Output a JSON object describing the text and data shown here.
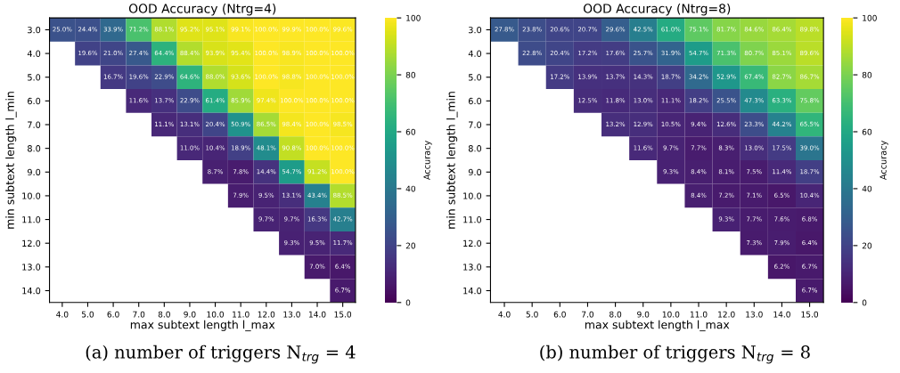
{
  "chart_data": [
    {
      "type": "heatmap",
      "title": "OOD Accuracy (Ntrg=4)",
      "xlabel": "max subtext length l_max",
      "ylabel": "min subtext length l_min",
      "clabel": "Accuracy",
      "clim": [
        0,
        100
      ],
      "cticks": [
        0,
        20,
        40,
        60,
        80,
        100
      ],
      "categories": [
        "4.0",
        "5.0",
        "6.0",
        "7.0",
        "8.0",
        "9.0",
        "10.0",
        "11.0",
        "12.0",
        "13.0",
        "14.0",
        "15.0"
      ],
      "y_categories": [
        "3.0",
        "4.0",
        "5.0",
        "6.0",
        "7.0",
        "8.0",
        "9.0",
        "10.0",
        "11.0",
        "12.0",
        "13.0",
        "14.0"
      ],
      "cells": [
        [
          25.0,
          24.4,
          33.9,
          71.2,
          88.1,
          95.2,
          95.1,
          99.1,
          100.0,
          99.9,
          100.0,
          99.6
        ],
        [
          null,
          19.6,
          21.0,
          27.4,
          64.4,
          88.4,
          93.9,
          95.4,
          100.0,
          98.9,
          100.0,
          100.0
        ],
        [
          null,
          null,
          16.7,
          19.6,
          22.9,
          64.6,
          88.0,
          93.6,
          100.0,
          98.8,
          100.0,
          100.0
        ],
        [
          null,
          null,
          null,
          11.6,
          13.7,
          22.9,
          61.4,
          85.9,
          97.4,
          100.0,
          100.0,
          100.0
        ],
        [
          null,
          null,
          null,
          null,
          11.1,
          13.1,
          20.4,
          50.9,
          86.5,
          98.4,
          100.0,
          98.5
        ],
        [
          null,
          null,
          null,
          null,
          null,
          11.0,
          10.4,
          18.9,
          48.1,
          90.8,
          100.0,
          100.0
        ],
        [
          null,
          null,
          null,
          null,
          null,
          null,
          8.7,
          7.8,
          14.4,
          54.7,
          91.2,
          100.0
        ],
        [
          null,
          null,
          null,
          null,
          null,
          null,
          null,
          7.9,
          9.5,
          13.1,
          43.4,
          88.5
        ],
        [
          null,
          null,
          null,
          null,
          null,
          null,
          null,
          null,
          9.7,
          9.7,
          16.3,
          42.7
        ],
        [
          null,
          null,
          null,
          null,
          null,
          null,
          null,
          null,
          null,
          9.3,
          9.5,
          11.7
        ],
        [
          null,
          null,
          null,
          null,
          null,
          null,
          null,
          null,
          null,
          null,
          7.0,
          6.4
        ],
        [
          null,
          null,
          null,
          null,
          null,
          null,
          null,
          null,
          null,
          null,
          null,
          6.7
        ]
      ],
      "cell_labels": [
        [
          "25.0%",
          "24.4%",
          "33.9%",
          "71.2%",
          "88.1%",
          "95.2%",
          "95.1%",
          "99.1%",
          "100.0%",
          "99.9%",
          "100.0%",
          "99.6%"
        ],
        [
          null,
          "19.6%",
          "21.0%",
          "27.4%",
          "64.4%",
          "88.4%",
          "93.9%",
          "95.4%",
          "100.0%",
          "98.9%",
          "100.0%",
          "100.0%"
        ],
        [
          null,
          null,
          "16.7%",
          "19.6%",
          "22.9%",
          "64.6%",
          "88.0%",
          "93.6%",
          "100.0%",
          "98.8%",
          "100.0%",
          "100.0%"
        ],
        [
          null,
          null,
          null,
          "11.6%",
          "13.7%",
          "22.9%",
          "61.4%",
          "85.9%",
          "97.4%",
          "100.0%",
          "100.0%",
          "100.0%"
        ],
        [
          null,
          null,
          null,
          null,
          "11.1%",
          "13.1%",
          "20.4%",
          "50.9%",
          "86.5%",
          "98.4%",
          "100.0%",
          "98.5%"
        ],
        [
          null,
          null,
          null,
          null,
          null,
          "11.0%",
          "10.4%",
          "18.9%",
          "48.1%",
          "90.8%",
          "100.0%",
          "100.0%"
        ],
        [
          null,
          null,
          null,
          null,
          null,
          null,
          "8.7%",
          "7.8%",
          "14.4%",
          "54.7%",
          "91.2%",
          "100.0%"
        ],
        [
          null,
          null,
          null,
          null,
          null,
          null,
          null,
          "7.9%",
          "9.5%",
          "13.1%",
          "43.4%",
          "88.5%"
        ],
        [
          null,
          null,
          null,
          null,
          null,
          null,
          null,
          null,
          "9.7%",
          "9.7%",
          "16.3%",
          "42.7%"
        ],
        [
          null,
          null,
          null,
          null,
          null,
          null,
          null,
          null,
          null,
          "9.3%",
          "9.5%",
          "11.7%"
        ],
        [
          null,
          null,
          null,
          null,
          null,
          null,
          null,
          null,
          null,
          null,
          "7.0%",
          "6.4%"
        ],
        [
          null,
          null,
          null,
          null,
          null,
          null,
          null,
          null,
          null,
          null,
          null,
          "6.7%"
        ]
      ],
      "annotations": [
        "(a) number of triggers N$_{trg}$ = 4"
      ]
    },
    {
      "type": "heatmap",
      "title": "OOD Accuracy (Ntrg=8)",
      "xlabel": "max subtext length l_max",
      "ylabel": "min subtext length l_min",
      "clabel": "Accuracy",
      "clim": [
        0,
        100
      ],
      "cticks": [
        0,
        20,
        40,
        60,
        80,
        100
      ],
      "categories": [
        "4.0",
        "5.0",
        "6.0",
        "7.0",
        "8.0",
        "9.0",
        "10.0",
        "11.0",
        "12.0",
        "13.0",
        "14.0",
        "15.0"
      ],
      "y_categories": [
        "3.0",
        "4.0",
        "5.0",
        "6.0",
        "7.0",
        "8.0",
        "9.0",
        "10.0",
        "11.0",
        "12.0",
        "13.0",
        "14.0"
      ],
      "cells": [
        [
          27.8,
          23.8,
          20.6,
          20.7,
          29.6,
          42.5,
          61.0,
          75.1,
          81.7,
          84.6,
          86.4,
          89.8
        ],
        [
          null,
          22.8,
          20.4,
          17.2,
          17.6,
          25.7,
          31.9,
          54.7,
          71.3,
          80.7,
          85.1,
          89.6
        ],
        [
          null,
          null,
          17.2,
          13.9,
          13.7,
          14.3,
          18.7,
          34.2,
          52.9,
          67.4,
          82.7,
          86.7
        ],
        [
          null,
          null,
          null,
          12.5,
          11.8,
          13.0,
          11.1,
          18.2,
          25.5,
          47.3,
          63.3,
          75.8
        ],
        [
          null,
          null,
          null,
          null,
          13.2,
          12.9,
          10.5,
          9.4,
          12.6,
          23.3,
          44.2,
          65.5
        ],
        [
          null,
          null,
          null,
          null,
          null,
          11.6,
          9.7,
          7.7,
          8.3,
          13.0,
          17.5,
          39.0
        ],
        [
          null,
          null,
          null,
          null,
          null,
          null,
          9.3,
          8.4,
          8.1,
          7.5,
          11.4,
          18.7
        ],
        [
          null,
          null,
          null,
          null,
          null,
          null,
          null,
          8.4,
          7.2,
          7.1,
          6.5,
          10.4
        ],
        [
          null,
          null,
          null,
          null,
          null,
          null,
          null,
          null,
          9.3,
          7.7,
          7.6,
          6.8
        ],
        [
          null,
          null,
          null,
          null,
          null,
          null,
          null,
          null,
          null,
          7.3,
          7.9,
          6.4
        ],
        [
          null,
          null,
          null,
          null,
          null,
          null,
          null,
          null,
          null,
          null,
          6.2,
          6.7
        ],
        [
          null,
          null,
          null,
          null,
          null,
          null,
          null,
          null,
          null,
          null,
          null,
          6.7
        ]
      ],
      "cell_labels": [
        [
          "27.8%",
          "23.8%",
          "20.6%",
          "20.7%",
          "29.6%",
          "42.5%",
          "61.0%",
          "75.1%",
          "81.7%",
          "84.6%",
          "86.4%",
          "89.8%"
        ],
        [
          null,
          "22.8%",
          "20.4%",
          "17.2%",
          "17.6%",
          "25.7%",
          "31.9%",
          "54.7%",
          "71.3%",
          "80.7%",
          "85.1%",
          "89.6%"
        ],
        [
          null,
          null,
          "17.2%",
          "13.9%",
          "13.7%",
          "14.3%",
          "18.7%",
          "34.2%",
          "52.9%",
          "67.4%",
          "82.7%",
          "86.7%"
        ],
        [
          null,
          null,
          null,
          "12.5%",
          "11.8%",
          "13.0%",
          "11.1%",
          "18.2%",
          "25.5%",
          "47.3%",
          "63.3%",
          "75.8%"
        ],
        [
          null,
          null,
          null,
          null,
          "13.2%",
          "12.9%",
          "10.5%",
          "9.4%",
          "12.6%",
          "23.3%",
          "44.2%",
          "65.5%"
        ],
        [
          null,
          null,
          null,
          null,
          null,
          "11.6%",
          "9.7%",
          "7.7%",
          "8.3%",
          "13.0%",
          "17.5%",
          "39.0%"
        ],
        [
          null,
          null,
          null,
          null,
          null,
          null,
          "9.3%",
          "8.4%",
          "8.1%",
          "7.5%",
          "11.4%",
          "18.7%"
        ],
        [
          null,
          null,
          null,
          null,
          null,
          null,
          null,
          "8.4%",
          "7.2%",
          "7.1%",
          "6.5%",
          "10.4%"
        ],
        [
          null,
          null,
          null,
          null,
          null,
          null,
          null,
          null,
          "9.3%",
          "7.7%",
          "7.6%",
          "6.8%"
        ],
        [
          null,
          null,
          null,
          null,
          null,
          null,
          null,
          null,
          null,
          "7.3%",
          "7.9%",
          "6.4%"
        ],
        [
          null,
          null,
          null,
          null,
          null,
          null,
          null,
          null,
          null,
          null,
          "6.2%",
          "6.7%"
        ],
        [
          null,
          null,
          null,
          null,
          null,
          null,
          null,
          null,
          null,
          null,
          null,
          "6.7%"
        ]
      ],
      "annotations": [
        "(b) number of triggers N$_{trg}$ = 8"
      ]
    }
  ]
}
